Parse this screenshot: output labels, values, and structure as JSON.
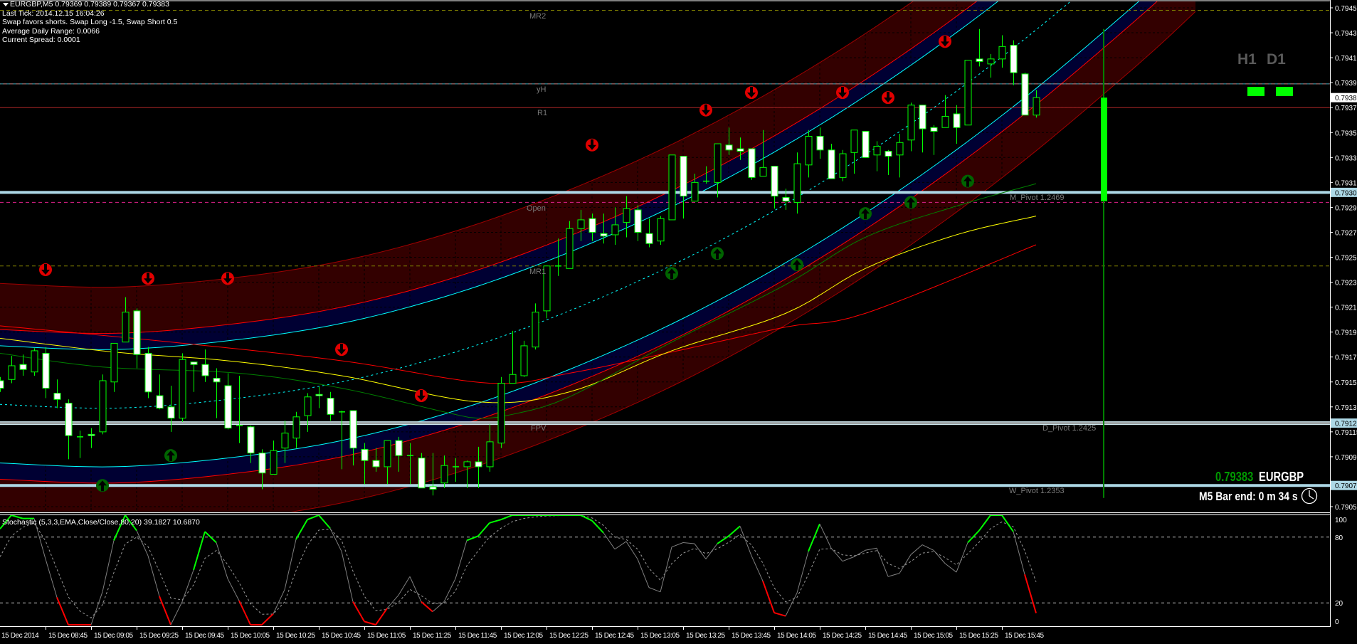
{
  "header": {
    "symbol_line": "EURGBP,M5  0.79369 0.79389 0.79367 0.79383",
    "info_lines": [
      "Last Tick: 2014.12.15 16:04:26",
      "Swap favors shorts. Swap Long -1.5, Swap Short 0.5",
      "Average Daily Range: 0.0066",
      "Current Spread: 0.0001"
    ]
  },
  "timeframes": {
    "labels": [
      "H1",
      "D1"
    ],
    "status_color": "#00ff00"
  },
  "ticker": {
    "price": "0.79383",
    "symbol": "EURGBP",
    "bar_end": "M5 Bar end: 0 m 34 s",
    "price_color": "#009900",
    "icon": "clock-icon"
  },
  "levels": [
    {
      "label": "MR2",
      "price": 0.79453,
      "color": "#808000",
      "style": "dashed"
    },
    {
      "label": "yH",
      "price": 0.79394,
      "color": "#40b0c0",
      "style": "dashed"
    },
    {
      "label": "R1",
      "price": 0.79375,
      "color": "#b02828",
      "style": "solid"
    },
    {
      "label": "M_Pivot 1.2469",
      "price": 0.79307,
      "color": "#add8e6",
      "style": "thick"
    },
    {
      "label": "Open",
      "price": 0.79299,
      "color": "#e0208a",
      "style": "dashed"
    },
    {
      "label": "MR1",
      "price": 0.79248,
      "color": "#808000",
      "style": "dashed"
    },
    {
      "label": "D_Pivot 1.2425",
      "price": 0.79122,
      "color": "#8a8a8a",
      "style": "double"
    },
    {
      "label": "W_Pivot 1.2353",
      "price": 0.79072,
      "color": "#add8e6",
      "style": "thick"
    }
  ],
  "level_extra_labels": {
    "fpv": "FPV"
  },
  "price_axis": {
    "ticks": [
      "0.79455",
      "0.79435",
      "0.79415",
      "0.79395",
      "0.79375",
      "0.79355",
      "0.79335",
      "0.79315",
      "0.79295",
      "0.79275",
      "0.79255",
      "0.79235",
      "0.79215",
      "0.79195",
      "0.79175",
      "0.79155",
      "0.79135",
      "0.79115",
      "0.79095",
      "0.79055"
    ],
    "markers": [
      {
        "value": "0.79383",
        "bg": "#ffffff"
      },
      {
        "value": "0.79307",
        "bg": "#add8e6"
      },
      {
        "value": "0.79122",
        "bg": "#add8e6"
      },
      {
        "value": "0.79072",
        "bg": "#add8e6"
      }
    ]
  },
  "time_axis": {
    "labels": [
      "15 Dec 2014",
      "15 Dec 08:45",
      "15 Dec 09:05",
      "15 Dec 09:25",
      "15 Dec 09:45",
      "15 Dec 10:05",
      "15 Dec 10:25",
      "15 Dec 10:45",
      "15 Dec 11:05",
      "15 Dec 11:25",
      "15 Dec 11:45",
      "15 Dec 12:05",
      "15 Dec 12:25",
      "15 Dec 12:45",
      "15 Dec 13:05",
      "15 Dec 13:25",
      "15 Dec 13:45",
      "15 Dec 14:05",
      "15 Dec 14:25",
      "15 Dec 14:45",
      "15 Dec 15:05",
      "15 Dec 15:25",
      "15 Dec 15:45"
    ]
  },
  "stochastic": {
    "label": "Stochastic (5,3,3,EMA,Close/Close,80,20) 39.1827 10.6870",
    "axis_labels": [
      "100",
      "80",
      "20",
      "0"
    ],
    "levels": [
      80,
      20
    ],
    "ylim": [
      0,
      100
    ],
    "colors": {
      "main": "#808080",
      "up": "#00ff00",
      "down": "#ff0000",
      "signal": "#9a9a9a"
    },
    "main": [
      87.5,
      100,
      97,
      97,
      60,
      25,
      0,
      0,
      0,
      30,
      77,
      100,
      86,
      63,
      26,
      0,
      21,
      50,
      85,
      75,
      42,
      22,
      0,
      0,
      10,
      32,
      78,
      96,
      100,
      88,
      67,
      21,
      3,
      0,
      15,
      27,
      44,
      21,
      12,
      21,
      42,
      77,
      81,
      93,
      96,
      100,
      100,
      100,
      100,
      100,
      100,
      100,
      95,
      84,
      69,
      76,
      60,
      34,
      30,
      71,
      75,
      74,
      60,
      74,
      81,
      90,
      63,
      40,
      11,
      8,
      29,
      67,
      92,
      70,
      58,
      62,
      68,
      70,
      44,
      47,
      64,
      73,
      68,
      56,
      48,
      75,
      86,
      100,
      100,
      85,
      46,
      10.687
    ],
    "signal": [
      62,
      81,
      89,
      93,
      76.5,
      50.8,
      25.4,
      12.7,
      6.3,
      18.2,
      47.6,
      73.8,
      79.9,
      71.4,
      48.7,
      24.4,
      22.7,
      36.3,
      60.7,
      67.8,
      54.9,
      38.5,
      19.2,
      9.6,
      9.8,
      20.9,
      49.5,
      72.7,
      86.4,
      87.2,
      77.1,
      49,
      26,
      13,
      14,
      20.5,
      32.3,
      26.6,
      19.3,
      19.7,
      30.8,
      53.9,
      67.5,
      80.2,
      88.1,
      94.1,
      97,
      98.5,
      99.3,
      99.6,
      99.8,
      99.9,
      97.5,
      90.7,
      79.9,
      77.9,
      69,
      51.5,
      40.7,
      55.9,
      65.4,
      69.7,
      64.9,
      69.4,
      75.2,
      82.6,
      72.8,
      56.4,
      33.7,
      20.9,
      24.9,
      46,
      69,
      69.5,
      63.8,
      62.9,
      65.4,
      67.7,
      55.9,
      51.4,
      57.7,
      65.4,
      66.7,
      61.3,
      54.7,
      64.8,
      75.4,
      87.7,
      93.9,
      89.4,
      67.7,
      39.1827
    ]
  },
  "chart_data": {
    "type": "candlestick",
    "symbol": "EURGBP",
    "timeframe": "M5",
    "ylim": [
      0.7905,
      0.7946
    ],
    "colors": {
      "wick": "#00ff00",
      "bull_body": "#000000",
      "bear_body": "#ffffff",
      "background": "#000000"
    },
    "candles": [
      [
        0.79156,
        0.79159,
        0.79147,
        0.7915
      ],
      [
        0.79157,
        0.79176,
        0.79154,
        0.79168
      ],
      [
        0.79169,
        0.79177,
        0.7916,
        0.79165
      ],
      [
        0.79163,
        0.79182,
        0.7916,
        0.7918
      ],
      [
        0.79178,
        0.79183,
        0.79142,
        0.7915
      ],
      [
        0.79146,
        0.79157,
        0.79134,
        0.79141
      ],
      [
        0.79138,
        0.79141,
        0.79093,
        0.79112
      ],
      [
        0.79111,
        0.79116,
        0.79094,
        0.79111
      ],
      [
        0.79113,
        0.79118,
        0.79102,
        0.79112
      ],
      [
        0.79115,
        0.79161,
        0.79113,
        0.79156
      ],
      [
        0.79155,
        0.79186,
        0.79147,
        0.79186
      ],
      [
        0.79187,
        0.79223,
        0.79187,
        0.79211
      ],
      [
        0.79212,
        0.79214,
        0.79166,
        0.79177
      ],
      [
        0.79178,
        0.79183,
        0.79142,
        0.79147
      ],
      [
        0.79144,
        0.79161,
        0.79133,
        0.79134
      ],
      [
        0.79135,
        0.79152,
        0.79115,
        0.79126
      ],
      [
        0.79126,
        0.79178,
        0.79123,
        0.79173
      ],
      [
        0.79171,
        0.79171,
        0.79147,
        0.79169
      ],
      [
        0.79169,
        0.79181,
        0.79155,
        0.7916
      ],
      [
        0.79158,
        0.79166,
        0.79126,
        0.79155
      ],
      [
        0.79152,
        0.79162,
        0.79117,
        0.79118
      ],
      [
        0.7912,
        0.7916,
        0.79106,
        0.7912
      ],
      [
        0.79119,
        0.7912,
        0.7909,
        0.79098
      ],
      [
        0.79098,
        0.79101,
        0.79069,
        0.79082
      ],
      [
        0.79081,
        0.79108,
        0.79081,
        0.791
      ],
      [
        0.79102,
        0.79124,
        0.7909,
        0.79114
      ],
      [
        0.7911,
        0.79131,
        0.79102,
        0.79127
      ],
      [
        0.79128,
        0.79146,
        0.79115,
        0.79143
      ],
      [
        0.79145,
        0.79151,
        0.79134,
        0.79144
      ],
      [
        0.79142,
        0.79147,
        0.79124,
        0.79129
      ],
      [
        0.79131,
        0.79132,
        0.79085,
        0.79131
      ],
      [
        0.79132,
        0.79132,
        0.79088,
        0.79102
      ],
      [
        0.79101,
        0.79106,
        0.79073,
        0.79092
      ],
      [
        0.79092,
        0.79102,
        0.79083,
        0.79087
      ],
      [
        0.79087,
        0.79108,
        0.79073,
        0.79108
      ],
      [
        0.79108,
        0.79111,
        0.79083,
        0.79096
      ],
      [
        0.79096,
        0.79106,
        0.79073,
        0.79096
      ],
      [
        0.79094,
        0.79098,
        0.7907,
        0.7907
      ],
      [
        0.79071,
        0.79098,
        0.79064,
        0.79069
      ],
      [
        0.79074,
        0.79096,
        0.7907,
        0.79088
      ],
      [
        0.79087,
        0.79094,
        0.79075,
        0.79087
      ],
      [
        0.79087,
        0.79092,
        0.7907,
        0.79091
      ],
      [
        0.79091,
        0.79103,
        0.7907,
        0.79087
      ],
      [
        0.79087,
        0.79121,
        0.79083,
        0.79107
      ],
      [
        0.79106,
        0.79159,
        0.79102,
        0.79154
      ],
      [
        0.79154,
        0.79196,
        0.79154,
        0.79161
      ],
      [
        0.7916,
        0.79188,
        0.79159,
        0.79184
      ],
      [
        0.79183,
        0.79218,
        0.79181,
        0.79211
      ],
      [
        0.79212,
        0.79248,
        0.79206,
        0.79248
      ],
      [
        0.79248,
        0.7927,
        0.7924,
        0.79248
      ],
      [
        0.79246,
        0.79284,
        0.79246,
        0.79278
      ],
      [
        0.79278,
        0.79293,
        0.79268,
        0.79285
      ],
      [
        0.79286,
        0.7929,
        0.79268,
        0.79275
      ],
      [
        0.79274,
        0.7929,
        0.79266,
        0.79272
      ],
      [
        0.79273,
        0.79295,
        0.79265,
        0.79281
      ],
      [
        0.79283,
        0.79304,
        0.79271,
        0.79294
      ],
      [
        0.79293,
        0.79297,
        0.79268,
        0.79275
      ],
      [
        0.79274,
        0.79286,
        0.79263,
        0.79266
      ],
      [
        0.79268,
        0.79288,
        0.79265,
        0.79286
      ],
      [
        0.79285,
        0.79337,
        0.79285,
        0.79337
      ],
      [
        0.79336,
        0.79336,
        0.79286,
        0.79304
      ],
      [
        0.793,
        0.79322,
        0.793,
        0.79315
      ],
      [
        0.79316,
        0.79328,
        0.79314,
        0.79316
      ],
      [
        0.79315,
        0.79346,
        0.79303,
        0.79346
      ],
      [
        0.79345,
        0.79359,
        0.79337,
        0.79341
      ],
      [
        0.79342,
        0.79351,
        0.79333,
        0.7934
      ],
      [
        0.79342,
        0.79342,
        0.79317,
        0.79319
      ],
      [
        0.7932,
        0.79357,
        0.7932,
        0.79327
      ],
      [
        0.79328,
        0.79328,
        0.79294,
        0.79304
      ],
      [
        0.79303,
        0.7931,
        0.79293,
        0.793
      ],
      [
        0.79299,
        0.79339,
        0.7929,
        0.7933
      ],
      [
        0.79329,
        0.79357,
        0.79319,
        0.79352
      ],
      [
        0.79352,
        0.79359,
        0.79334,
        0.79341
      ],
      [
        0.79341,
        0.79346,
        0.79318,
        0.79318
      ],
      [
        0.79319,
        0.79341,
        0.79316,
        0.79338
      ],
      [
        0.79339,
        0.79357,
        0.79322,
        0.79357
      ],
      [
        0.79356,
        0.79356,
        0.79335,
        0.79335
      ],
      [
        0.79337,
        0.79348,
        0.79324,
        0.79344
      ],
      [
        0.7934,
        0.79341,
        0.79321,
        0.79336
      ],
      [
        0.79337,
        0.79354,
        0.79319,
        0.79347
      ],
      [
        0.79349,
        0.79379,
        0.7934,
        0.79377
      ],
      [
        0.79377,
        0.79377,
        0.79339,
        0.79358
      ],
      [
        0.79359,
        0.79361,
        0.79337,
        0.79356
      ],
      [
        0.79359,
        0.79385,
        0.79359,
        0.79368
      ],
      [
        0.7937,
        0.79377,
        0.79346,
        0.79359
      ],
      [
        0.79361,
        0.79413,
        0.79361,
        0.79413
      ],
      [
        0.79414,
        0.79438,
        0.79408,
        0.79412
      ],
      [
        0.7941,
        0.79418,
        0.79399,
        0.79414
      ],
      [
        0.79414,
        0.79433,
        0.79407,
        0.79424
      ],
      [
        0.79425,
        0.79429,
        0.79393,
        0.79403
      ],
      [
        0.79402,
        0.79403,
        0.79369,
        0.79369
      ],
      [
        0.79369,
        0.79389,
        0.79367,
        0.79383
      ]
    ],
    "channel": {
      "mid": [
        [
          0,
          0.79137
        ],
        [
          10,
          0.79134
        ],
        [
          20,
          0.79141
        ],
        [
          30,
          0.79155
        ],
        [
          40,
          0.79179
        ],
        [
          50,
          0.79212
        ],
        [
          60,
          0.79253
        ],
        [
          70,
          0.79303
        ],
        [
          80,
          0.79362
        ],
        [
          90,
          0.7943
        ],
        [
          100,
          0.79507
        ],
        [
          105,
          0.79549
        ]
      ],
      "inner_offset": 0.00047,
      "band_offset": 0.0006,
      "outer_offset": 0.00097,
      "colors": {
        "inner_line": "#00ffff",
        "band_line": "#ff0000",
        "outer_line": "#a00000",
        "band_fill": "#000033",
        "outer_fill": "#330000",
        "mid_line": "#00ffff"
      }
    },
    "moving_averages": [
      {
        "color": "#ff0000",
        "points": [
          [
            0,
            0.792
          ],
          [
            15,
            0.79187
          ],
          [
            30,
            0.79172
          ],
          [
            43,
            0.79154
          ],
          [
            50,
            0.79162
          ],
          [
            59,
            0.79179
          ],
          [
            69,
            0.79199
          ],
          [
            76,
            0.7921
          ],
          [
            91,
            0.79265
          ]
        ]
      },
      {
        "color": "#ffff00",
        "points": [
          [
            0,
            0.7919
          ],
          [
            10,
            0.79179
          ],
          [
            20,
            0.79172
          ],
          [
            30,
            0.7916
          ],
          [
            42,
            0.79139
          ],
          [
            50,
            0.79147
          ],
          [
            59,
            0.7918
          ],
          [
            69,
            0.7921
          ],
          [
            76,
            0.79246
          ],
          [
            84,
            0.79273
          ],
          [
            91,
            0.79288
          ]
        ]
      },
      {
        "color": "#008000",
        "points": [
          [
            0,
            0.79178
          ],
          [
            9,
            0.79167
          ],
          [
            21,
            0.79162
          ],
          [
            30,
            0.7915
          ],
          [
            39,
            0.79131
          ],
          [
            42,
            0.79126
          ],
          [
            45,
            0.79129
          ],
          [
            50,
            0.79143
          ],
          [
            59,
            0.79187
          ],
          [
            69,
            0.79233
          ],
          [
            76,
            0.79271
          ],
          [
            84,
            0.79296
          ],
          [
            91,
            0.79314
          ]
        ]
      }
    ],
    "sell_arrows": [
      [
        4,
        0.79245
      ],
      [
        13,
        0.79238
      ],
      [
        20,
        0.79238
      ],
      [
        30,
        0.79181
      ],
      [
        37,
        0.79144
      ],
      [
        52,
        0.79345
      ],
      [
        62,
        0.79373
      ],
      [
        66,
        0.79387
      ],
      [
        74,
        0.79387
      ],
      [
        78,
        0.79383
      ],
      [
        83,
        0.79428
      ]
    ],
    "buy_arrows": [
      [
        9,
        0.79072
      ],
      [
        15,
        0.79096
      ],
      [
        59,
        0.79242
      ],
      [
        63,
        0.79258
      ],
      [
        70,
        0.79249
      ],
      [
        76,
        0.7929
      ],
      [
        80,
        0.79299
      ],
      [
        85,
        0.79316
      ]
    ],
    "range_bar": {
      "high": 0.79438,
      "low": 0.79062,
      "open": 0.793,
      "close": 0.79383,
      "color": "#00ff00",
      "line_color": "#008000"
    }
  }
}
